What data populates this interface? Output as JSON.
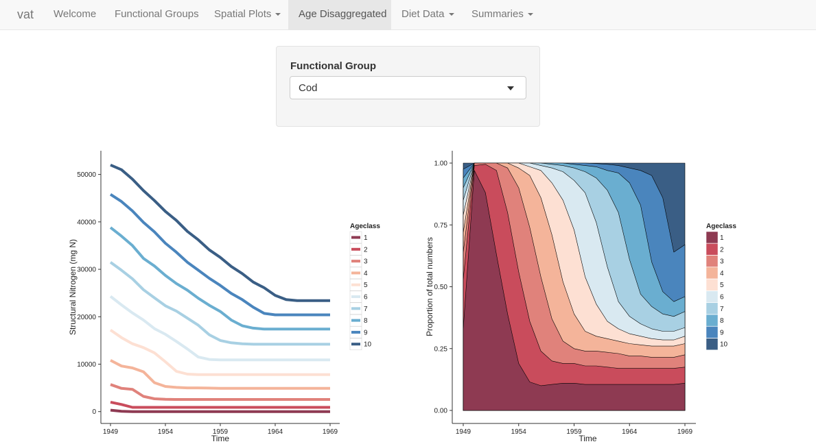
{
  "nav": {
    "brand": "vat",
    "items": [
      {
        "label": "Welcome",
        "dropdown": false,
        "active": false
      },
      {
        "label": "Functional Groups",
        "dropdown": false,
        "active": false
      },
      {
        "label": "Spatial Plots",
        "dropdown": true,
        "active": false
      },
      {
        "label": "Age Disaggregated",
        "dropdown": false,
        "active": true
      },
      {
        "label": "Diet Data",
        "dropdown": true,
        "active": false
      },
      {
        "label": "Summaries",
        "dropdown": true,
        "active": false
      }
    ]
  },
  "control": {
    "label": "Functional Group",
    "selected": "Cod"
  },
  "colors": {
    "ageclass": [
      "#8e3a52",
      "#c94c5c",
      "#e0827b",
      "#f4b49a",
      "#fde0d3",
      "#d9e9f1",
      "#a8d0e3",
      "#6aaed0",
      "#4a85bd",
      "#3a5e85"
    ]
  },
  "chart_data": [
    {
      "type": "line",
      "xlabel": "Time",
      "ylabel": "Structural Nitrogen (mg N)",
      "xlim": [
        1949,
        1969
      ],
      "ylim": [
        -2500,
        55000
      ],
      "xticks": [
        1949,
        1954,
        1959,
        1964,
        1969
      ],
      "yticks": [
        0,
        10000,
        20000,
        30000,
        40000,
        50000
      ],
      "legend_title": "Ageclass",
      "legend_position": "right",
      "x": [
        1949,
        1950,
        1951,
        1952,
        1953,
        1954,
        1955,
        1956,
        1957,
        1958,
        1959,
        1960,
        1961,
        1962,
        1963,
        1964,
        1965,
        1966,
        1967,
        1968,
        1969
      ],
      "series": [
        {
          "name": "1",
          "values": [
            300,
            50,
            0,
            0,
            0,
            0,
            0,
            0,
            0,
            0,
            0,
            0,
            0,
            0,
            0,
            0,
            0,
            0,
            0,
            0,
            0
          ]
        },
        {
          "name": "2",
          "values": [
            2000,
            1500,
            900,
            900,
            900,
            900,
            900,
            900,
            900,
            900,
            900,
            900,
            900,
            900,
            900,
            900,
            900,
            900,
            900,
            900,
            900
          ]
        },
        {
          "name": "3",
          "values": [
            5700,
            4900,
            4700,
            3200,
            2700,
            2600,
            2550,
            2550,
            2550,
            2550,
            2550,
            2550,
            2550,
            2550,
            2550,
            2550,
            2550,
            2550,
            2550,
            2550,
            2550
          ]
        },
        {
          "name": "4",
          "values": [
            10800,
            9600,
            9200,
            8400,
            6100,
            5300,
            5100,
            5000,
            5000,
            4950,
            4900,
            4900,
            4900,
            4900,
            4900,
            4900,
            4900,
            4900,
            4900,
            4900,
            4900
          ]
        },
        {
          "name": "5",
          "values": [
            17200,
            15600,
            14300,
            13500,
            12400,
            10500,
            8500,
            7900,
            7800,
            7800,
            7800,
            7800,
            7800,
            7800,
            7800,
            7800,
            7800,
            7800,
            7800,
            7800,
            7800
          ]
        },
        {
          "name": "6",
          "values": [
            24300,
            22500,
            20800,
            19300,
            17500,
            16300,
            14800,
            13200,
            11500,
            11000,
            10900,
            10900,
            10900,
            10900,
            10900,
            10900,
            10900,
            10900,
            10900,
            10900,
            10900
          ]
        },
        {
          "name": "7",
          "values": [
            31500,
            29800,
            28000,
            25700,
            24000,
            22300,
            21200,
            19700,
            18200,
            16200,
            15000,
            14500,
            14300,
            14200,
            14200,
            14200,
            14200,
            14200,
            14200,
            14200,
            14200
          ]
        },
        {
          "name": "8",
          "values": [
            38800,
            37000,
            35000,
            32300,
            30700,
            28700,
            27000,
            25600,
            23900,
            22400,
            21100,
            19300,
            18100,
            17600,
            17400,
            17400,
            17400,
            17400,
            17400,
            17400,
            17400
          ]
        },
        {
          "name": "9",
          "values": [
            45800,
            44300,
            42300,
            39900,
            37900,
            35500,
            33600,
            31500,
            29800,
            28100,
            26600,
            24900,
            23600,
            22000,
            20700,
            20400,
            20400,
            20400,
            20400,
            20400,
            20400
          ]
        },
        {
          "name": "10",
          "values": [
            52000,
            51000,
            49000,
            46600,
            44500,
            42200,
            40300,
            38000,
            36200,
            34100,
            32500,
            30600,
            29100,
            27300,
            26100,
            24500,
            23600,
            23400,
            23400,
            23400,
            23400
          ]
        }
      ]
    },
    {
      "type": "area",
      "stacked": true,
      "xlabel": "Time",
      "ylabel": "Proportion of total numbers",
      "xlim": [
        1949,
        1969
      ],
      "ylim": [
        0,
        1
      ],
      "xticks": [
        1949,
        1954,
        1959,
        1964,
        1969
      ],
      "yticks": [
        "0.00",
        "0.25",
        "0.50",
        "0.75",
        "1.00"
      ],
      "legend_title": "Ageclass",
      "legend_position": "right",
      "x": [
        1949,
        1950,
        1951,
        1952,
        1953,
        1954,
        1955,
        1956,
        1957,
        1958,
        1959,
        1960,
        1961,
        1962,
        1963,
        1964,
        1965,
        1966,
        1967,
        1968,
        1969
      ],
      "cumulative": [
        {
          "name": "1",
          "values": [
            0.33,
            0.97,
            0.88,
            0.63,
            0.39,
            0.19,
            0.115,
            0.1,
            0.105,
            0.11,
            0.11,
            0.105,
            0.105,
            0.105,
            0.105,
            0.105,
            0.105,
            0.105,
            0.105,
            0.105,
            0.11
          ]
        },
        {
          "name": "2",
          "values": [
            0.53,
            0.99,
            0.995,
            0.97,
            0.8,
            0.56,
            0.36,
            0.24,
            0.2,
            0.19,
            0.19,
            0.18,
            0.18,
            0.175,
            0.17,
            0.17,
            0.17,
            0.17,
            0.17,
            0.17,
            0.175
          ]
        },
        {
          "name": "3",
          "values": [
            0.64,
            1.0,
            1.0,
            1.0,
            0.98,
            0.9,
            0.74,
            0.54,
            0.37,
            0.28,
            0.25,
            0.24,
            0.24,
            0.235,
            0.23,
            0.22,
            0.22,
            0.215,
            0.215,
            0.215,
            0.225
          ]
        },
        {
          "name": "4",
          "values": [
            0.72,
            1.0,
            1.0,
            1.0,
            1.0,
            0.98,
            0.95,
            0.86,
            0.71,
            0.52,
            0.39,
            0.32,
            0.3,
            0.29,
            0.28,
            0.27,
            0.265,
            0.26,
            0.26,
            0.26,
            0.27
          ]
        },
        {
          "name": "5",
          "values": [
            0.79,
            1.0,
            1.0,
            1.0,
            1.0,
            1.0,
            0.985,
            0.97,
            0.92,
            0.85,
            0.73,
            0.54,
            0.43,
            0.36,
            0.33,
            0.31,
            0.3,
            0.29,
            0.285,
            0.285,
            0.3
          ]
        },
        {
          "name": "6",
          "values": [
            0.85,
            1.0,
            1.0,
            1.0,
            1.0,
            1.0,
            1.0,
            0.99,
            0.98,
            0.965,
            0.93,
            0.88,
            0.76,
            0.58,
            0.44,
            0.38,
            0.35,
            0.33,
            0.32,
            0.32,
            0.335
          ]
        },
        {
          "name": "7",
          "values": [
            0.9,
            1.0,
            1.0,
            1.0,
            1.0,
            1.0,
            1.0,
            1.0,
            0.995,
            0.99,
            0.98,
            0.965,
            0.94,
            0.89,
            0.8,
            0.61,
            0.47,
            0.42,
            0.39,
            0.38,
            0.4
          ]
        },
        {
          "name": "8",
          "values": [
            0.94,
            1.0,
            1.0,
            1.0,
            1.0,
            1.0,
            1.0,
            1.0,
            1.0,
            1.0,
            0.995,
            0.99,
            0.985,
            0.97,
            0.96,
            0.92,
            0.83,
            0.6,
            0.48,
            0.44,
            0.46
          ]
        },
        {
          "name": "9",
          "values": [
            0.975,
            1.0,
            1.0,
            1.0,
            1.0,
            1.0,
            1.0,
            1.0,
            1.0,
            1.0,
            1.0,
            1.0,
            0.998,
            0.995,
            0.99,
            0.98,
            0.97,
            0.95,
            0.86,
            0.64,
            0.67
          ]
        },
        {
          "name": "10",
          "values": [
            1.0,
            1.0,
            1.0,
            1.0,
            1.0,
            1.0,
            1.0,
            1.0,
            1.0,
            1.0,
            1.0,
            1.0,
            1.0,
            1.0,
            1.0,
            1.0,
            1.0,
            1.0,
            1.0,
            1.0,
            1.0
          ]
        }
      ]
    }
  ]
}
